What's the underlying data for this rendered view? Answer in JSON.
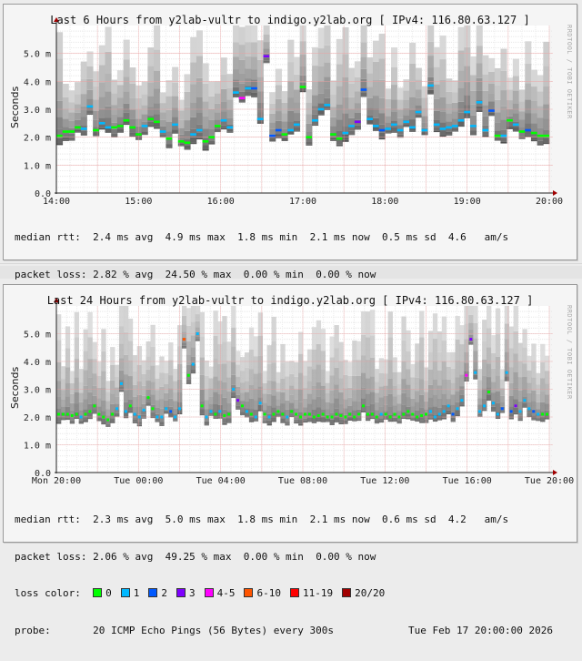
{
  "graphs": [
    {
      "title": "Last 6 Hours from y2lab-vultr to indigo.y2lab.org [ IPv4: 116.80.63.127 ]",
      "watermark": "RRDTOOL / TOBI OETIKER",
      "ylabel": "Seconds",
      "median_rtt": {
        "label": "median rtt:",
        "avg": "2.4 ms avg",
        "max": "4.9 ms max",
        "min": "1.8 ms min",
        "now": "2.1 ms now",
        "sd": "0.5 ms sd",
        "ams": "4.6",
        "ams_unit": "am/s"
      },
      "packet_loss": {
        "label": "packet loss:",
        "avg": "2.82 % avg",
        "max": "24.50 % max",
        "min": "0.00 % min",
        "now": "0.00 % now"
      },
      "loss_color_label": "loss color:",
      "probe": {
        "label": "probe:",
        "desc": "20 ICMP Echo Pings (56 Bytes) every 300s",
        "date": "Tue Feb 17 20:00:00 2026"
      }
    },
    {
      "title": "Last 24 Hours from y2lab-vultr to indigo.y2lab.org [ IPv4: 116.80.63.127 ]",
      "watermark": "RRDTOOL / TOBI OETIKER",
      "ylabel": "Seconds",
      "median_rtt": {
        "label": "median rtt:",
        "avg": "2.3 ms avg",
        "max": "5.0 ms max",
        "min": "1.8 ms min",
        "now": "2.1 ms now",
        "sd": "0.6 ms sd",
        "ams": "4.2",
        "ams_unit": "am/s"
      },
      "packet_loss": {
        "label": "packet loss:",
        "avg": "2.06 % avg",
        "max": "49.25 % max",
        "min": "0.00 % min",
        "now": "0.00 % now"
      },
      "loss_color_label": "loss color:",
      "probe": {
        "label": "probe:",
        "desc": "20 ICMP Echo Pings (56 Bytes) every 300s",
        "date": "Tue Feb 17 20:00:00 2026"
      }
    }
  ],
  "loss_colors": [
    {
      "label": "0",
      "color": "#00ff00"
    },
    {
      "label": "1",
      "color": "#00b8ff"
    },
    {
      "label": "2",
      "color": "#0059ff"
    },
    {
      "label": "3",
      "color": "#7e00ff"
    },
    {
      "label": "4-5",
      "color": "#ff00ff"
    },
    {
      "label": "6-10",
      "color": "#ff5500"
    },
    {
      "label": "11-19",
      "color": "#ff0000"
    },
    {
      "label": "20/20",
      "color": "#a10000"
    }
  ],
  "chart_data": [
    {
      "type": "line",
      "title": "Last 6 Hours from y2lab-vultr to indigo.y2lab.org [ IPv4: 116.80.63.127 ]",
      "xlabel": "",
      "ylabel": "Seconds",
      "ylim": [
        0,
        0.006
      ],
      "yticks": [
        "0.0",
        "1.0 m",
        "2.0 m",
        "3.0 m",
        "4.0 m",
        "5.0 m"
      ],
      "xticks": [
        "14:00",
        "15:00",
        "16:00",
        "17:00",
        "18:00",
        "19:00",
        "20:00"
      ],
      "grid": true,
      "legend_position": "bottom",
      "series": [
        {
          "name": "median rtt (ms)",
          "values": [
            2.05,
            2.2,
            2.2,
            2.35,
            2.3,
            3.1,
            2.25,
            2.5,
            2.35,
            2.35,
            2.4,
            2.6,
            2.35,
            2.1,
            2.4,
            2.65,
            2.55,
            2.2,
            1.95,
            2.45,
            1.85,
            1.8,
            2.1,
            2.25,
            1.85,
            2.0,
            2.4,
            2.6,
            2.35,
            3.6,
            3.4,
            3.75,
            3.75,
            2.65,
            4.9,
            2.05,
            2.25,
            2.1,
            2.25,
            2.45,
            3.8,
            2.0,
            2.6,
            3.0,
            3.15,
            2.1,
            1.95,
            2.15,
            2.4,
            2.55,
            3.7,
            2.65,
            2.4,
            2.25,
            2.3,
            2.45,
            2.25,
            2.55,
            2.35,
            2.9,
            2.25,
            3.85,
            2.45,
            2.3,
            2.35,
            2.4,
            2.6,
            2.9,
            2.4,
            3.25,
            2.25,
            2.95,
            2.05,
            2.05,
            2.6,
            2.45,
            2.2,
            2.25,
            2.15,
            2.05,
            2.05
          ],
          "loss": [
            0,
            0,
            0,
            0,
            1,
            1,
            0,
            1,
            1,
            0,
            0,
            0,
            0,
            0,
            1,
            0,
            0,
            1,
            0,
            1,
            0,
            0,
            1,
            1,
            0,
            0,
            0,
            1,
            1,
            1,
            4,
            1,
            2,
            1,
            3,
            2,
            2,
            0,
            1,
            1,
            0,
            0,
            1,
            1,
            1,
            0,
            0,
            1,
            1,
            3,
            2,
            1,
            1,
            2,
            1,
            1,
            1,
            1,
            1,
            1,
            1,
            1,
            1,
            1,
            1,
            1,
            1,
            1,
            1,
            1,
            1,
            2,
            0,
            1,
            0,
            1,
            0,
            2,
            0,
            0,
            0
          ]
        }
      ],
      "packet_loss_pct": {
        "avg": 2.82,
        "max": 24.5,
        "min": 0.0,
        "now": 0.0
      },
      "median_rtt_ms": {
        "avg": 2.4,
        "max": 4.9,
        "min": 1.8,
        "now": 2.1,
        "sd": 0.5
      }
    },
    {
      "type": "line",
      "title": "Last 24 Hours from y2lab-vultr to indigo.y2lab.org [ IPv4: 116.80.63.127 ]",
      "xlabel": "",
      "ylabel": "Seconds",
      "ylim": [
        0,
        0.006
      ],
      "yticks": [
        "0.0",
        "1.0 m",
        "2.0 m",
        "3.0 m",
        "4.0 m",
        "5.0 m"
      ],
      "xticks": [
        "Mon 20:00",
        "Tue 00:00",
        "Tue 04:00",
        "Tue 08:00",
        "Tue 12:00",
        "Tue 16:00",
        "Tue 20:00"
      ],
      "grid": true,
      "legend_position": "bottom",
      "series": [
        {
          "name": "median rtt (ms)",
          "values": [
            2.1,
            2.1,
            2.1,
            2.05,
            2.1,
            2.0,
            2.1,
            2.2,
            2.4,
            2.1,
            2.0,
            1.9,
            2.1,
            2.3,
            3.2,
            2.2,
            2.4,
            2.1,
            2.0,
            2.25,
            2.7,
            2.3,
            2.0,
            2.0,
            2.3,
            2.2,
            2.0,
            2.3,
            4.8,
            3.5,
            3.9,
            5.0,
            2.4,
            2.0,
            2.2,
            2.1,
            2.2,
            2.05,
            2.1,
            3.0,
            2.6,
            2.4,
            2.2,
            2.1,
            2.0,
            2.5,
            2.1,
            2.0,
            2.1,
            2.2,
            2.1,
            2.0,
            2.2,
            2.1,
            2.0,
            2.1,
            2.1,
            2.0,
            2.05,
            2.1,
            2.0,
            2.0,
            2.1,
            2.05,
            2.0,
            2.1,
            2.0,
            2.1,
            2.4,
            2.1,
            2.1,
            2.0,
            2.1,
            2.1,
            2.0,
            2.1,
            2.0,
            2.1,
            2.2,
            2.1,
            2.0,
            2.05,
            2.1,
            2.2,
            2.0,
            2.1,
            2.2,
            2.4,
            2.1,
            2.3,
            2.6,
            3.5,
            4.8,
            3.6,
            2.2,
            2.4,
            2.9,
            2.5,
            2.1,
            2.3,
            3.6,
            2.2,
            2.4,
            2.2,
            2.6,
            2.3,
            2.2,
            2.1,
            2.1,
            2.1
          ],
          "loss": [
            0,
            0,
            0,
            0,
            0,
            1,
            0,
            0,
            0,
            0,
            0,
            0,
            0,
            1,
            1,
            1,
            0,
            1,
            1,
            1,
            0,
            0,
            1,
            1,
            1,
            2,
            1,
            1,
            5,
            0,
            1,
            1,
            0,
            1,
            1,
            0,
            1,
            0,
            0,
            1,
            3,
            0,
            1,
            0,
            1,
            1,
            0,
            1,
            0,
            0,
            0,
            1,
            0,
            0,
            0,
            0,
            0,
            0,
            0,
            0,
            0,
            0,
            0,
            0,
            0,
            0,
            0,
            0,
            0,
            0,
            0,
            0,
            1,
            0,
            0,
            0,
            0,
            0,
            0,
            0,
            0,
            0,
            0,
            1,
            1,
            1,
            1,
            1,
            2,
            1,
            1,
            4,
            3,
            1,
            1,
            1,
            0,
            1,
            1,
            2,
            1,
            2,
            3,
            1,
            1,
            1,
            2,
            1,
            0,
            0
          ]
        }
      ],
      "packet_loss_pct": {
        "avg": 2.06,
        "max": 49.25,
        "min": 0.0,
        "now": 0.0
      },
      "median_rtt_ms": {
        "avg": 2.3,
        "max": 5.0,
        "min": 1.8,
        "now": 2.1,
        "sd": 0.6
      }
    }
  ]
}
